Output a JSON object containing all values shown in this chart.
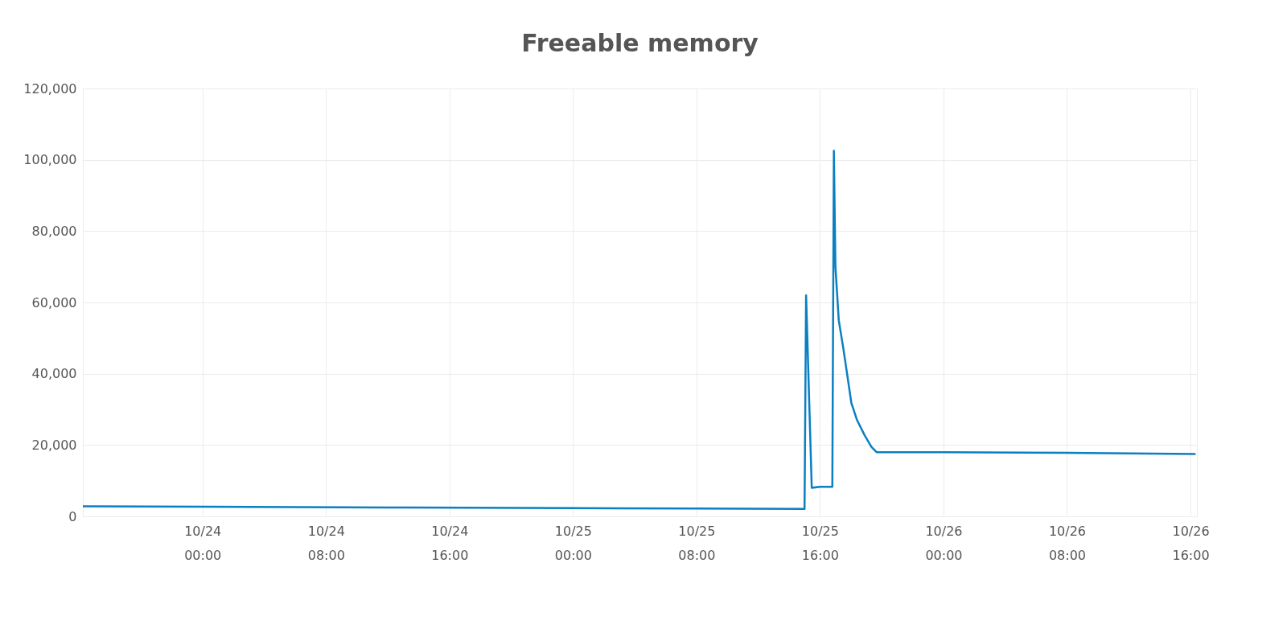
{
  "chart_data": {
    "type": "line",
    "title": "Freeable memory",
    "x": [
      "--10-23T16:15",
      "--10-24T00:00",
      "--10-24T12:00",
      "--10-25T00:00",
      "--10-25T08:00",
      "--10-25T15:00",
      "--10-25T15:06",
      "--10-25T15:28",
      "--10-25T16:00",
      "--10-25T16:48",
      "--10-25T16:54",
      "--10-25T17:00",
      "--10-25T17:13",
      "--10-25T17:31",
      "--10-25T18:02",
      "--10-25T18:24",
      "--10-25T18:53",
      "--10-25T19:20",
      "--10-25T19:40",
      "--10-26T00:00",
      "--10-26T08:00",
      "--10-26T16:20"
    ],
    "series": [
      {
        "color": "#0a7fc1",
        "values": [
          2800,
          2700,
          2500,
          2300,
          2200,
          2100,
          62000,
          8000,
          8300,
          8300,
          102500,
          70000,
          55000,
          47000,
          31800,
          27000,
          22800,
          19500,
          18000,
          18000,
          17800,
          17500
        ]
      }
    ],
    "xlim": [
      "--10-23T16:15",
      "--10-26T16:25"
    ],
    "xticks": [
      {
        "value": "--10-24T00:00",
        "label": "10/24 00:00"
      },
      {
        "value": "--10-24T08:00",
        "label": "10/24 08:00"
      },
      {
        "value": "--10-24T16:00",
        "label": "10/24 16:00"
      },
      {
        "value": "--10-25T00:00",
        "label": "10/25 00:00"
      },
      {
        "value": "--10-25T08:00",
        "label": "10/25 08:00"
      },
      {
        "value": "--10-25T16:00",
        "label": "10/25 16:00"
      },
      {
        "value": "--10-26T00:00",
        "label": "10/26 00:00"
      },
      {
        "value": "--10-26T08:00",
        "label": "10/26 08:00"
      },
      {
        "value": "--10-26T16:00",
        "label": "10/26 16:00"
      }
    ],
    "ylim": [
      0,
      120000
    ],
    "yticks": [
      0,
      {
        "value": 20000,
        "label": "20,000"
      },
      {
        "value": 40000,
        "label": "40,000"
      },
      {
        "value": 60000,
        "label": "60,000"
      },
      {
        "value": 80000,
        "label": "80,000"
      },
      {
        "value": 100000,
        "label": "100,000"
      },
      {
        "value": 120000,
        "label": "120,000"
      }
    ],
    "grid": true
  }
}
